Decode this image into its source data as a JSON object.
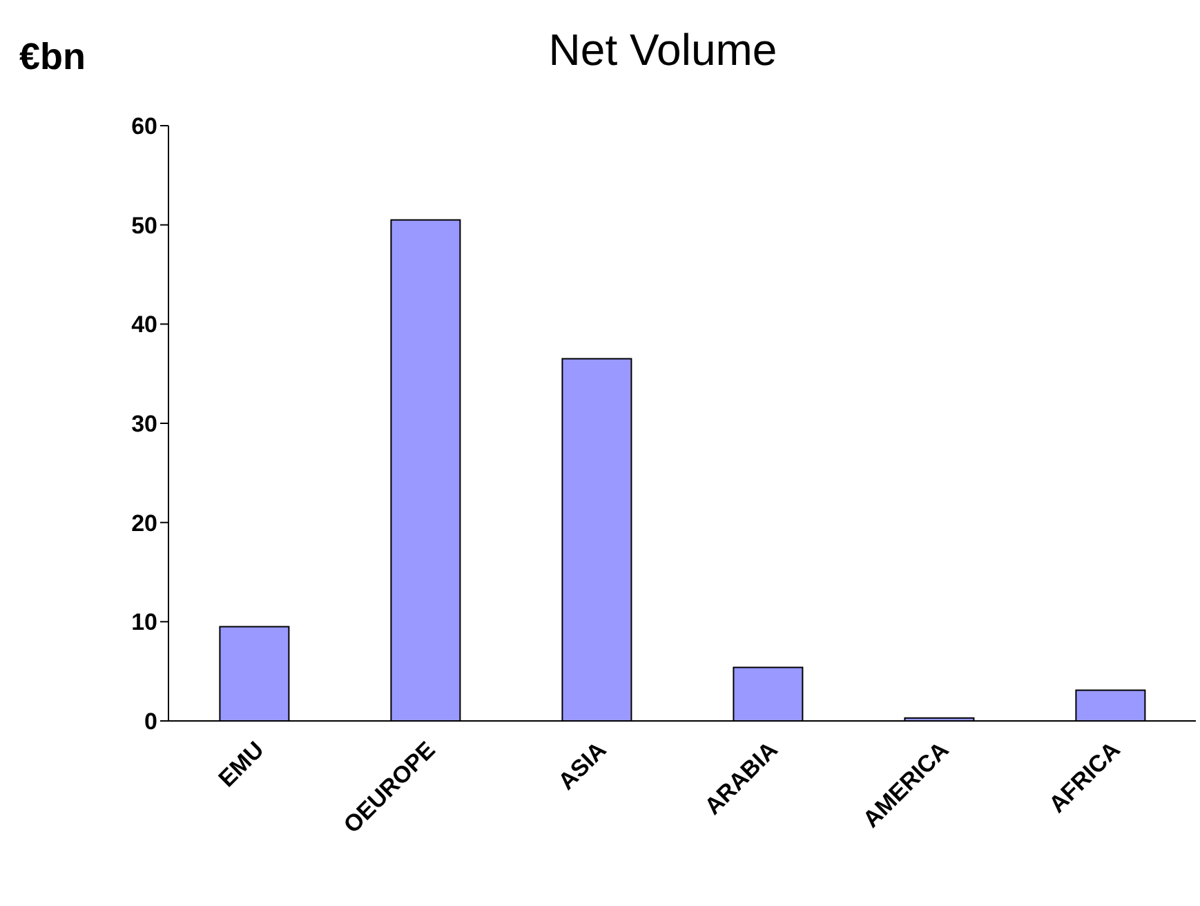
{
  "chart_data": {
    "type": "bar",
    "title": "Net Volume",
    "ylabel": "€bn",
    "categories": [
      "EMU",
      "OEUROPE",
      "ASIA",
      "ARABIA",
      "AMERICA",
      "AFRICA"
    ],
    "values": [
      9.5,
      50.5,
      36.5,
      5.4,
      0.3,
      3.1
    ],
    "color": "#9999ff",
    "ylim": [
      0,
      60
    ],
    "yticks": [
      0,
      10,
      20,
      30,
      40,
      50,
      60
    ],
    "grid": false
  }
}
